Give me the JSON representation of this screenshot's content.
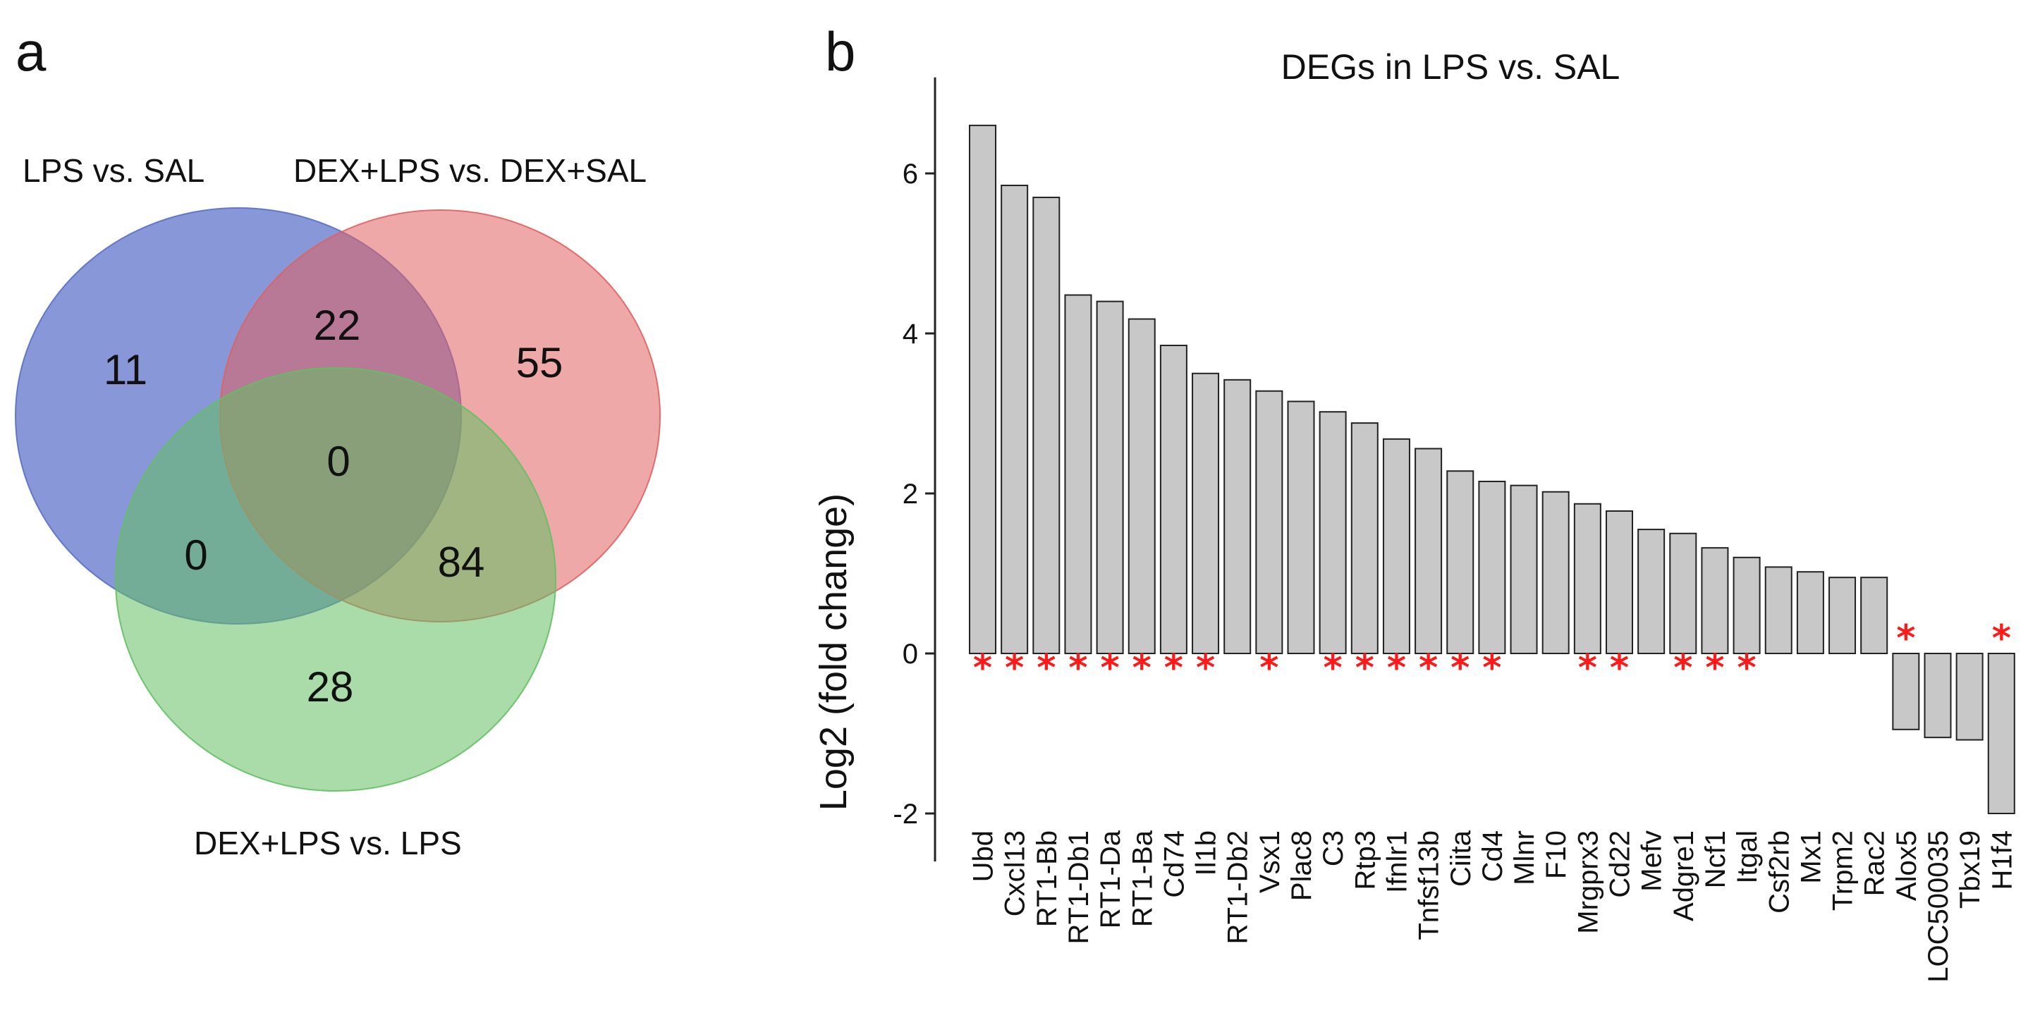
{
  "panel_a": {
    "letter": "a",
    "sets": [
      {
        "name": "LPS vs. SAL",
        "color": "#5a6fc8"
      },
      {
        "name": "DEX+LPS vs. DEX+SAL",
        "color": "#e06060"
      },
      {
        "name": "DEX+LPS vs. LPS",
        "color": "#62c062"
      }
    ],
    "regions": {
      "lps_only": "11",
      "lps_dexlps_dexsal": "22",
      "dexlps_dexsal_only": "55",
      "all_three": "0",
      "lps_dexlps_lps": "0",
      "dexlps_dexsal_dexlps_lps": "84",
      "dexlps_lps_only": "28"
    }
  },
  "panel_b": {
    "letter": "b",
    "asterisk": "*"
  },
  "chart_data": [
    {
      "type": "venn",
      "sets": [
        "LPS vs. SAL",
        "DEX+LPS vs. DEX+SAL",
        "DEX+LPS vs. LPS"
      ],
      "region_counts": {
        "LPS vs. SAL only": 11,
        "DEX+LPS vs. DEX+SAL only": 55,
        "DEX+LPS vs. LPS only": 28,
        "LPS vs. SAL & DEX+LPS vs. DEX+SAL": 22,
        "LPS vs. SAL & DEX+LPS vs. LPS": 0,
        "DEX+LPS vs. DEX+SAL & DEX+LPS vs. LPS": 84,
        "all three": 0
      }
    },
    {
      "type": "bar",
      "title": "DEGs in LPS vs. SAL",
      "xlabel": "",
      "ylabel": "Log2 (fold change)",
      "ylim": [
        -2.6,
        7.2
      ],
      "yticks": [
        -2,
        0,
        2,
        4,
        6
      ],
      "categories": [
        "Ubd",
        "Cxcl13",
        "RT1-Bb",
        "RT1-Db1",
        "RT1-Da",
        "RT1-Ba",
        "Cd74",
        "Il1b",
        "RT1-Db2",
        "Vsx1",
        "Plac8",
        "C3",
        "Rtp3",
        "Ifnlr1",
        "Tnfsf13b",
        "Ciita",
        "Cd4",
        "Mlnr",
        "F10",
        "Mrgprx3",
        "Cd22",
        "Mefv",
        "Adgre1",
        "Ncf1",
        "Itgal",
        "Csf2rb",
        "Mx1",
        "Trpm2",
        "Rac2",
        "Alox5",
        "LOC500035",
        "Tbx19",
        "H1f4"
      ],
      "values": [
        6.6,
        5.85,
        5.7,
        4.48,
        4.4,
        4.18,
        3.85,
        3.5,
        3.42,
        3.28,
        3.15,
        3.02,
        2.88,
        2.68,
        2.56,
        2.28,
        2.15,
        2.1,
        2.02,
        1.87,
        1.78,
        1.55,
        1.5,
        1.32,
        1.2,
        1.08,
        1.02,
        0.95,
        0.95,
        -0.95,
        -1.05,
        -1.08,
        -2.0
      ],
      "significant": [
        true,
        true,
        true,
        true,
        true,
        true,
        true,
        true,
        false,
        true,
        false,
        true,
        true,
        true,
        true,
        true,
        true,
        false,
        false,
        true,
        true,
        false,
        true,
        true,
        true,
        false,
        false,
        false,
        false,
        true,
        false,
        false,
        true
      ],
      "grid": false,
      "legend": "none"
    }
  ]
}
